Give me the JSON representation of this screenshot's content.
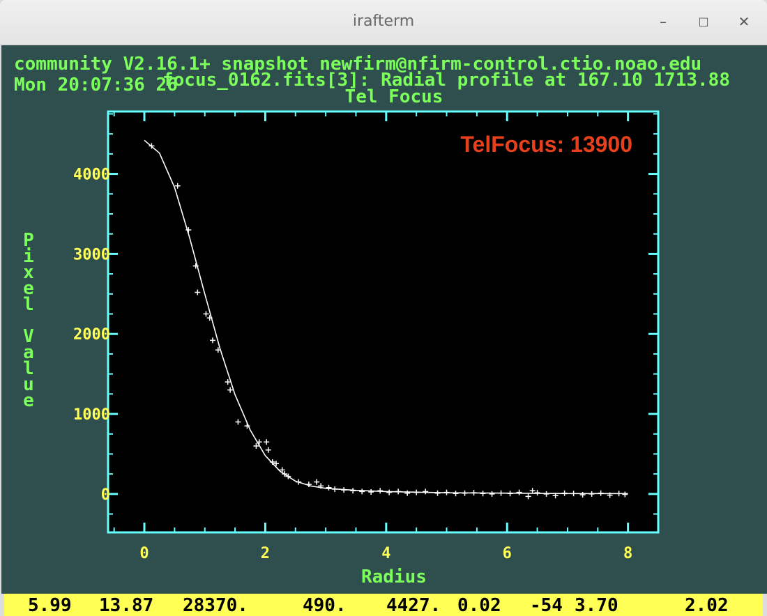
{
  "window": {
    "title": "irafterm",
    "minimize_glyph": "–",
    "maximize_glyph": "□",
    "close_glyph": "✕"
  },
  "terminal": {
    "line1": "community V2.16.1+ snapshot newfirm@nfirm-control.ctio.noao.edu",
    "line2": "Mon 20:07:36 26",
    "plot_title": "focus_0162.fits[3]: Radial profile at 167.10 1713.88",
    "plot_subtitle": "Tel Focus"
  },
  "overlay_label": "TelFocus: 13900",
  "colors": {
    "terminal_bg": "#2f4f4f",
    "terminal_text": "#7cff5a",
    "axes": "#66ffff",
    "tick_labels": "#ffff55",
    "plot_bg": "#000000",
    "data": "#ffffff",
    "overlay": "#e8401c",
    "status_bg": "#ffff55"
  },
  "chart_data": {
    "type": "scatter",
    "title": "focus_0162.fits[3]: Radial profile at 167.10 1713.88",
    "subtitle": "Tel Focus",
    "xlabel": "Radius",
    "ylabel": "Pixel Value",
    "xlim": [
      -0.6,
      8.5
    ],
    "ylim": [
      -480,
      4780
    ],
    "x_ticks": [
      0,
      2,
      4,
      6,
      8
    ],
    "y_ticks": [
      0,
      1000,
      2000,
      3000,
      4000
    ],
    "x_tick_labels": [
      "0",
      "2",
      "4",
      "6",
      "8"
    ],
    "y_tick_labels": [
      "0",
      "1000",
      "2000",
      "3000",
      "4000"
    ],
    "grid": false,
    "series": [
      {
        "kind": "points",
        "marker": "plus",
        "x": [
          0.12,
          0.55,
          0.73,
          0.85,
          0.88,
          1.02,
          1.08,
          1.13,
          1.22,
          1.38,
          1.42,
          1.55,
          1.7,
          1.85,
          1.9,
          2.02,
          2.05,
          2.12,
          2.18,
          2.28,
          2.32,
          2.38,
          2.55,
          2.72,
          2.85,
          2.92,
          3.05,
          3.15,
          3.3,
          3.45,
          3.6,
          3.75,
          3.9,
          4.05,
          4.2,
          4.35,
          4.5,
          4.65,
          4.85,
          5.0,
          5.15,
          5.3,
          5.45,
          5.6,
          5.75,
          5.9,
          6.05,
          6.2,
          6.35,
          6.42,
          6.5,
          6.65,
          6.8,
          6.95,
          7.1,
          7.25,
          7.4,
          7.55,
          7.7,
          7.85,
          7.95
        ],
        "y": [
          4350,
          3850,
          3300,
          2850,
          2520,
          2250,
          2200,
          1920,
          1800,
          1400,
          1300,
          900,
          850,
          600,
          650,
          650,
          550,
          400,
          380,
          300,
          250,
          220,
          150,
          120,
          150,
          100,
          80,
          60,
          50,
          40,
          30,
          25,
          40,
          20,
          30,
          10,
          20,
          30,
          10,
          20,
          5,
          10,
          15,
          5,
          0,
          10,
          5,
          20,
          -30,
          40,
          15,
          0,
          -20,
          10,
          5,
          -10,
          0,
          10,
          -15,
          5,
          -5
        ]
      },
      {
        "kind": "fit",
        "x": [
          0,
          0.25,
          0.5,
          0.75,
          1.0,
          1.25,
          1.5,
          1.75,
          2.0,
          2.25,
          2.5,
          2.75,
          3.0,
          3.5,
          4.0,
          5.0,
          6.0,
          7.0,
          8.0
        ],
        "y": [
          4420,
          4260,
          3830,
          3200,
          2500,
          1820,
          1240,
          800,
          480,
          280,
          160,
          100,
          70,
          45,
          30,
          15,
          10,
          5,
          5
        ]
      }
    ]
  },
  "status_bar": {
    "values": [
      "5.99",
      "13.87",
      "28370.",
      "490.",
      "4427.",
      "0.02",
      "-54",
      "3.70",
      "2.02"
    ]
  }
}
